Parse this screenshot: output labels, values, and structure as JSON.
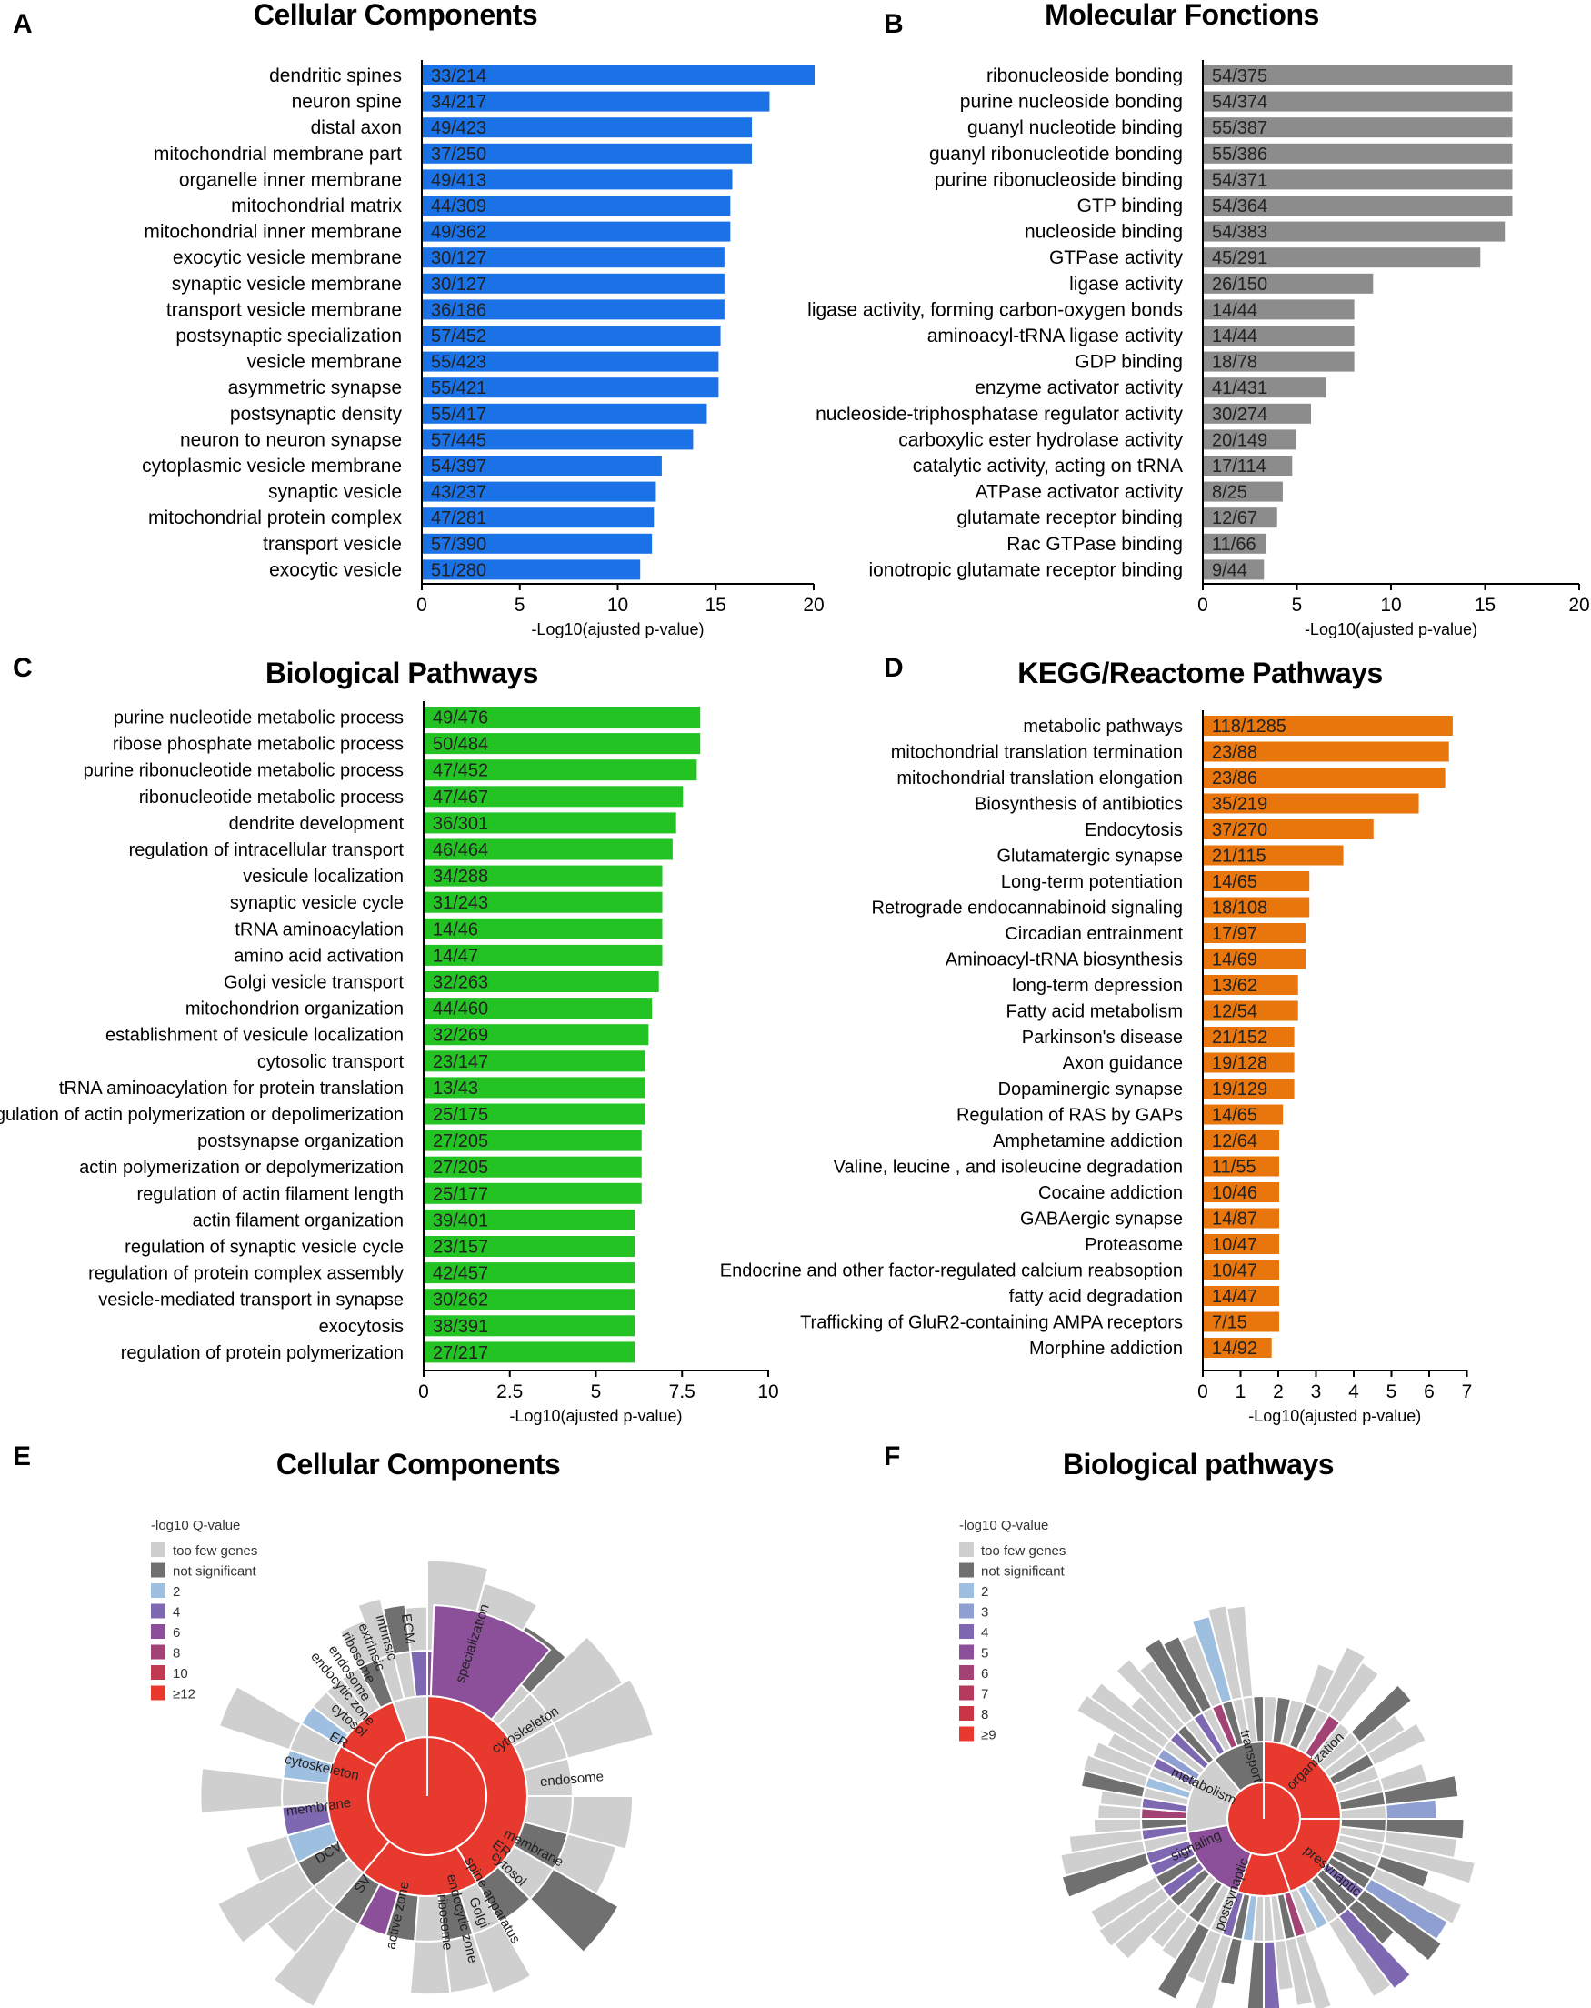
{
  "panels": {
    "a": {
      "letter": "A",
      "title": "Cellular Components"
    },
    "b": {
      "letter": "B",
      "title": "Molecular Fonctions"
    },
    "c": {
      "letter": "C",
      "title": "Biological Pathways"
    },
    "d": {
      "letter": "D",
      "title": "KEGG/Reactome Pathways"
    },
    "e": {
      "letter": "E",
      "title": "Cellular Components"
    },
    "f": {
      "letter": "F",
      "title": "Biological pathways"
    }
  },
  "colors": {
    "blue": "#1a72e6",
    "gray": "#8c8c8c",
    "green": "#22c322",
    "orange": "#e8760c",
    "sun_red": "#f03a2e",
    "sun_lightgray": "#cfcfcf",
    "sun_darkgray": "#707070"
  },
  "chart_data": [
    {
      "id": "A",
      "type": "bar",
      "orientation": "horizontal",
      "title": "Cellular Components",
      "xlabel": "-Log10(ajusted p-value)",
      "xlim": [
        0,
        20
      ],
      "xticks": [
        0,
        5,
        10,
        15,
        20
      ],
      "color": "#1a72e6",
      "categories": [
        "dendritic spines",
        "neuron spine",
        "distal axon",
        "mitochondrial membrane part",
        "organelle inner membrane",
        "mitochondrial matrix",
        "mitochondrial inner membrane",
        "exocytic vesicle membrane",
        "synaptic vesicle membrane",
        "transport vesicle membrane",
        "postsynaptic specialization",
        "vesicle membrane",
        "asymmetric synapse",
        "postsynaptic density",
        "neuron to neuron synapse",
        "cytoplasmic vesicle membrane",
        "synaptic vesicle",
        "mitochondrial protein complex",
        "transport vesicle",
        "exocytic vesicle"
      ],
      "values": [
        20.0,
        17.7,
        16.8,
        16.8,
        15.8,
        15.7,
        15.7,
        15.4,
        15.4,
        15.4,
        15.2,
        15.1,
        15.1,
        14.5,
        13.8,
        12.2,
        11.9,
        11.8,
        11.7,
        11.1
      ],
      "labels": [
        "33/214",
        "34/217",
        "49/423",
        "37/250",
        "49/413",
        "44/309",
        "49/362",
        "30/127",
        "30/127",
        "36/186",
        "57/452",
        "55/423",
        "55/421",
        "55/417",
        "57/445",
        "54/397",
        "43/237",
        "47/281",
        "57/390",
        "51/280"
      ]
    },
    {
      "id": "B",
      "type": "bar",
      "orientation": "horizontal",
      "title": "Molecular Fonctions",
      "xlabel": "-Log10(ajusted p-value)",
      "xlim": [
        0,
        20
      ],
      "xticks": [
        0,
        5,
        10,
        15,
        20
      ],
      "color": "#8c8c8c",
      "categories": [
        "ribonucleoside bonding",
        "purine nucleoside bonding",
        "guanyl nucleotide binding",
        "guanyl ribonucleotide bonding",
        "purine ribonucleoside binding",
        "GTP binding",
        "nucleoside binding",
        "GTPase activity",
        "ligase activity",
        "ligase activity, forming carbon-oxygen bonds",
        "aminoacyl-tRNA ligase activity",
        "GDP binding",
        "enzyme activator activity",
        "nucleoside-triphosphatase regulator activity",
        "carboxylic ester hydrolase activity",
        "catalytic activity, acting on tRNA",
        "ATPase activator activity",
        "glutamate receptor binding",
        "Rac GTPase binding",
        "ionotropic glutamate receptor binding"
      ],
      "values": [
        16.4,
        16.4,
        16.4,
        16.4,
        16.4,
        16.4,
        16.0,
        14.7,
        9.0,
        8.0,
        8.0,
        8.0,
        6.5,
        5.7,
        4.9,
        4.7,
        4.2,
        3.9,
        3.3,
        3.2
      ],
      "labels": [
        "54/375",
        "54/374",
        "55/387",
        "55/386",
        "54/371",
        "54/364",
        "54/383",
        "45/291",
        "26/150",
        "14/44",
        "14/44",
        "18/78",
        "41/431",
        "30/274",
        "20/149",
        "17/114",
        "8/25",
        "12/67",
        "11/66",
        "9/44"
      ]
    },
    {
      "id": "C",
      "type": "bar",
      "orientation": "horizontal",
      "title": "Biological Pathways",
      "xlabel": "-Log10(ajusted p-value)",
      "xlim": [
        0,
        10
      ],
      "xticks": [
        0,
        2.5,
        5,
        7.5,
        10
      ],
      "color": "#22c322",
      "categories": [
        "purine nucleotide metabolic process",
        "ribose phosphate metabolic process",
        "purine ribonucleotide metabolic process",
        "ribonucleotide metabolic process",
        "dendrite development",
        "regulation of intracellular transport",
        "vesicule localization",
        "synaptic vesicle cycle",
        "tRNA aminoacylation",
        "amino acid activation",
        "Golgi vesicle transport",
        "mitochondrion organization",
        "establishment of vesicule localization",
        "cytosolic transport",
        "tRNA aminoacylation for protein translation",
        "regulation of actin polymerization or depolimerization",
        "postsynapse organization",
        "actin polymerization or depolymerization",
        "regulation of actin filament length",
        "actin filament organization",
        "regulation of synaptic vesicle cycle",
        "regulation of protein complex assembly",
        "vesicle-mediated transport in synapse",
        "exocytosis",
        "regulation of protein polymerization"
      ],
      "values": [
        8.0,
        8.0,
        7.9,
        7.5,
        7.3,
        7.2,
        6.9,
        6.9,
        6.9,
        6.9,
        6.8,
        6.6,
        6.5,
        6.4,
        6.4,
        6.4,
        6.3,
        6.3,
        6.3,
        6.1,
        6.1,
        6.1,
        6.1,
        6.1,
        6.1
      ],
      "labels": [
        "49/476",
        "50/484",
        "47/452",
        "47/467",
        "36/301",
        "46/464",
        "34/288",
        "31/243",
        "14/46",
        "14/47",
        "32/263",
        "44/460",
        "32/269",
        "23/147",
        "13/43",
        "25/175",
        "27/205",
        "27/205",
        "25/177",
        "39/401",
        "23/157",
        "42/457",
        "30/262",
        "38/391",
        "27/217"
      ]
    },
    {
      "id": "D",
      "type": "bar",
      "orientation": "horizontal",
      "title": "KEGG/Reactome Pathways",
      "xlabel": "-Log10(ajusted p-value)",
      "xlim": [
        0,
        7
      ],
      "xticks": [
        0,
        1,
        2,
        3,
        4,
        5,
        6,
        7
      ],
      "color": "#e8760c",
      "categories": [
        "metabolic pathways",
        "mitochondrial translation termination",
        "mitochondrial translation elongation",
        "Biosynthesis of antibiotics",
        "Endocytosis",
        "Glutamatergic synapse",
        "Long-term potentiation",
        "Retrograde endocannabinoid signaling",
        "Circadian entrainment",
        "Aminoacyl-tRNA biosynthesis",
        "long-term depression",
        "Fatty acid metabolism",
        "Parkinson's disease",
        "Axon guidance",
        "Dopaminergic synapse",
        "Regulation of RAS by GAPs",
        "Amphetamine addiction",
        "Valine, leucine , and isoleucine degradation",
        "Cocaine addiction",
        "GABAergic synapse",
        "Proteasome",
        "Endocrine and other factor-regulated calcium reabsoption",
        "fatty acid degradation",
        "Trafficking of GluR2-containing AMPA receptors",
        "Morphine addiction"
      ],
      "values": [
        6.6,
        6.5,
        6.4,
        5.7,
        4.5,
        3.7,
        2.8,
        2.8,
        2.7,
        2.7,
        2.5,
        2.5,
        2.4,
        2.4,
        2.4,
        2.1,
        2.0,
        2.0,
        2.0,
        2.0,
        2.0,
        2.0,
        2.0,
        2.0,
        1.8
      ],
      "labels": [
        "118/1285",
        "23/88",
        "23/86",
        "35/219",
        "37/270",
        "21/115",
        "14/65",
        "18/108",
        "17/97",
        "14/69",
        "13/62",
        "12/54",
        "21/152",
        "19/128",
        "19/129",
        "14/65",
        "12/64",
        "11/55",
        "10/46",
        "14/87",
        "10/47",
        "10/47",
        "14/47",
        "7/15",
        "14/92"
      ]
    },
    {
      "id": "E",
      "type": "sunburst",
      "title": "Cellular Components",
      "legend_title": "-log10 Q-value",
      "legend": [
        {
          "label": "too few genes",
          "color": "#cfcfcf"
        },
        {
          "label": "not significant",
          "color": "#707070"
        },
        {
          "label": "2",
          "color": "#9fbfe0"
        },
        {
          "label": "4",
          "color": "#7f68b2"
        },
        {
          "label": "6",
          "color": "#8c4f9a"
        },
        {
          "label": "8",
          "color": "#a34274"
        },
        {
          "label": "10",
          "color": "#c23a52"
        },
        {
          "label": "≥12",
          "color": "#e8392e"
        }
      ],
      "segment_labels": [
        "specialization",
        "cytoskeleton",
        "endosome",
        "membrane",
        "ER",
        "cytosol",
        "spine apparatus",
        "Golgi",
        "endocytic zone",
        "ribosome",
        "active zone",
        "SV",
        "DCV",
        "membrane",
        "cytoskeleton",
        "ER",
        "cytosol",
        "endocytic zone",
        "endosome",
        "ribosome",
        "extrinsic",
        "intrinsic",
        "ECM"
      ]
    },
    {
      "id": "F",
      "type": "sunburst",
      "title": "Biological pathways",
      "legend_title": "-log10 Q-value",
      "legend": [
        {
          "label": "too few genes",
          "color": "#cfcfcf"
        },
        {
          "label": "not significant",
          "color": "#707070"
        },
        {
          "label": "2",
          "color": "#9fbfe0"
        },
        {
          "label": "3",
          "color": "#8f9fd2"
        },
        {
          "label": "4",
          "color": "#7f68b2"
        },
        {
          "label": "5",
          "color": "#8c4f9a"
        },
        {
          "label": "6",
          "color": "#a34274"
        },
        {
          "label": "7",
          "color": "#b53b5e"
        },
        {
          "label": "8",
          "color": "#c93545"
        },
        {
          "label": "≥9",
          "color": "#e8392e"
        }
      ],
      "segment_labels": [
        "transport",
        "organization",
        "metabolism",
        "signaling",
        "presynaptic",
        "postsynaptic"
      ]
    }
  ]
}
